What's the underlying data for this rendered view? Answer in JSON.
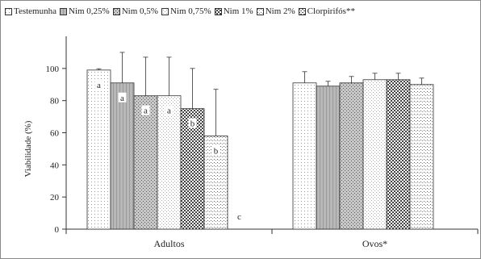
{
  "chart_data": {
    "type": "bar",
    "title": "",
    "xlabel": "",
    "ylabel": "Viabilidade (%)",
    "ylim": [
      0,
      120
    ],
    "yticks": [
      0,
      20,
      40,
      60,
      80,
      100
    ],
    "grid": false,
    "legend_position": "top",
    "categories": [
      "Adultos",
      "Ovos*"
    ],
    "series": [
      {
        "name": "Testemunha",
        "pattern": "dots-light",
        "values": [
          99,
          91
        ],
        "errors": [
          0.8,
          7
        ],
        "labels": [
          "a",
          ""
        ]
      },
      {
        "name": "Nim 0,25%",
        "pattern": "gray-solid",
        "values": [
          91,
          89
        ],
        "errors": [
          19,
          3
        ],
        "labels": [
          "a",
          ""
        ]
      },
      {
        "name": "Nim 0,5%",
        "pattern": "gray-dots",
        "values": [
          83,
          91
        ],
        "errors": [
          24,
          4
        ],
        "labels": [
          "a",
          ""
        ]
      },
      {
        "name": "Nim 0,75%",
        "pattern": "fine-dots",
        "values": [
          83,
          93
        ],
        "errors": [
          24,
          4
        ],
        "labels": [
          "a",
          ""
        ]
      },
      {
        "name": "Nim 1%",
        "pattern": "checker",
        "values": [
          75,
          93
        ],
        "errors": [
          25,
          4
        ],
        "labels": [
          "b",
          ""
        ]
      },
      {
        "name": "Nim 2%",
        "pattern": "sparse-dots",
        "values": [
          58,
          90
        ],
        "errors": [
          29,
          4
        ],
        "labels": [
          "b",
          ""
        ]
      },
      {
        "name": "Clorpirifós**",
        "pattern": "dashes",
        "values": [
          0,
          0
        ],
        "errors": [
          0,
          0
        ],
        "labels": [
          "c",
          ""
        ]
      }
    ]
  },
  "colors": {
    "bar_outline": "#333333",
    "axis": "#333333",
    "frame": "#888888",
    "background": "#ffffff"
  }
}
